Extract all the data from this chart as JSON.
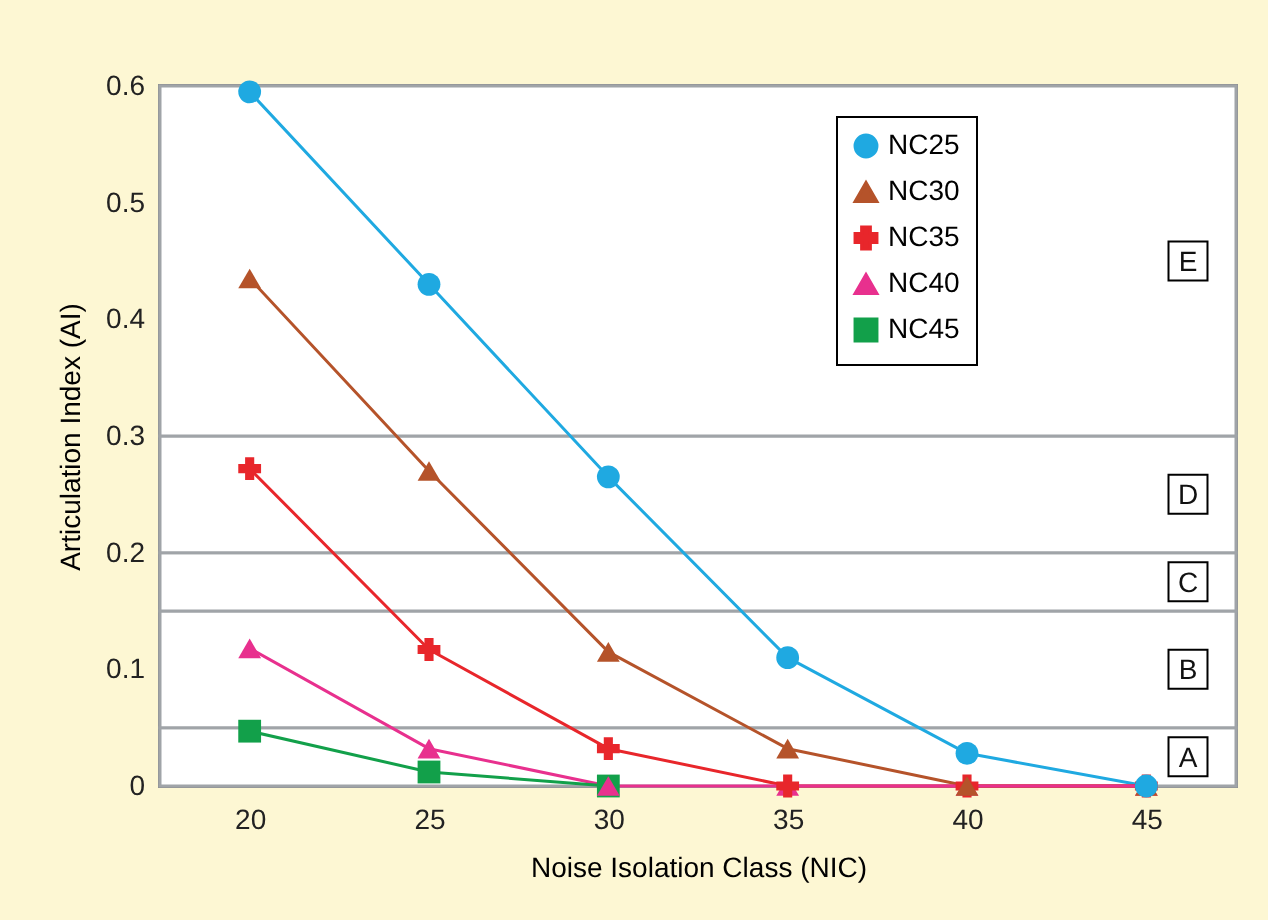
{
  "chart_data": {
    "type": "line",
    "xlabel": "Noise Isolation Class (NIC)",
    "ylabel": "Articulation Index (AI)",
    "x": [
      20,
      25,
      30,
      35,
      40,
      45
    ],
    "xlim": [
      17.5,
      47.5
    ],
    "xticks": [
      20,
      25,
      30,
      35,
      40,
      45
    ],
    "ylim": [
      0,
      0.6
    ],
    "yticks": [
      {
        "value": 0,
        "label": "0"
      },
      {
        "value": 0.1,
        "label": "0.1"
      },
      {
        "value": 0.2,
        "label": "0.2"
      },
      {
        "value": 0.3,
        "label": "0.3"
      },
      {
        "value": 0.4,
        "label": "0.4"
      },
      {
        "value": 0.5,
        "label": "0.5"
      },
      {
        "value": 0.6,
        "label": "0.6"
      }
    ],
    "grid": false,
    "legend": "top right",
    "series": [
      {
        "name": "NC25",
        "color": "#1fa9e1",
        "marker": "circle",
        "values": [
          0.595,
          0.43,
          0.265,
          0.11,
          0.028,
          0
        ]
      },
      {
        "name": "NC30",
        "color": "#b5532a",
        "marker": "triangle",
        "values": [
          0.435,
          0.27,
          0.115,
          0.032,
          0,
          0
        ]
      },
      {
        "name": "NC35",
        "color": "#e8262b",
        "marker": "cross",
        "values": [
          0.272,
          0.117,
          0.032,
          0,
          0,
          0
        ]
      },
      {
        "name": "NC40",
        "color": "#e8308e",
        "marker": "triangle",
        "values": [
          0.118,
          0.032,
          0,
          0,
          0,
          0
        ]
      },
      {
        "name": "NC45",
        "color": "#12a04a",
        "marker": "square",
        "values": [
          0.047,
          0.012,
          0,
          null,
          null,
          null
        ]
      }
    ],
    "bands": [
      {
        "axis": "y",
        "from": 0,
        "to": 0.05,
        "label": "A"
      },
      {
        "axis": "y",
        "from": 0.05,
        "to": 0.15,
        "label": "B"
      },
      {
        "axis": "y",
        "from": 0.15,
        "to": 0.2,
        "label": "C"
      },
      {
        "axis": "y",
        "from": 0.2,
        "to": 0.3,
        "label": "D"
      },
      {
        "axis": "y",
        "from": 0.3,
        "to": 0.6,
        "label": "E"
      }
    ]
  }
}
